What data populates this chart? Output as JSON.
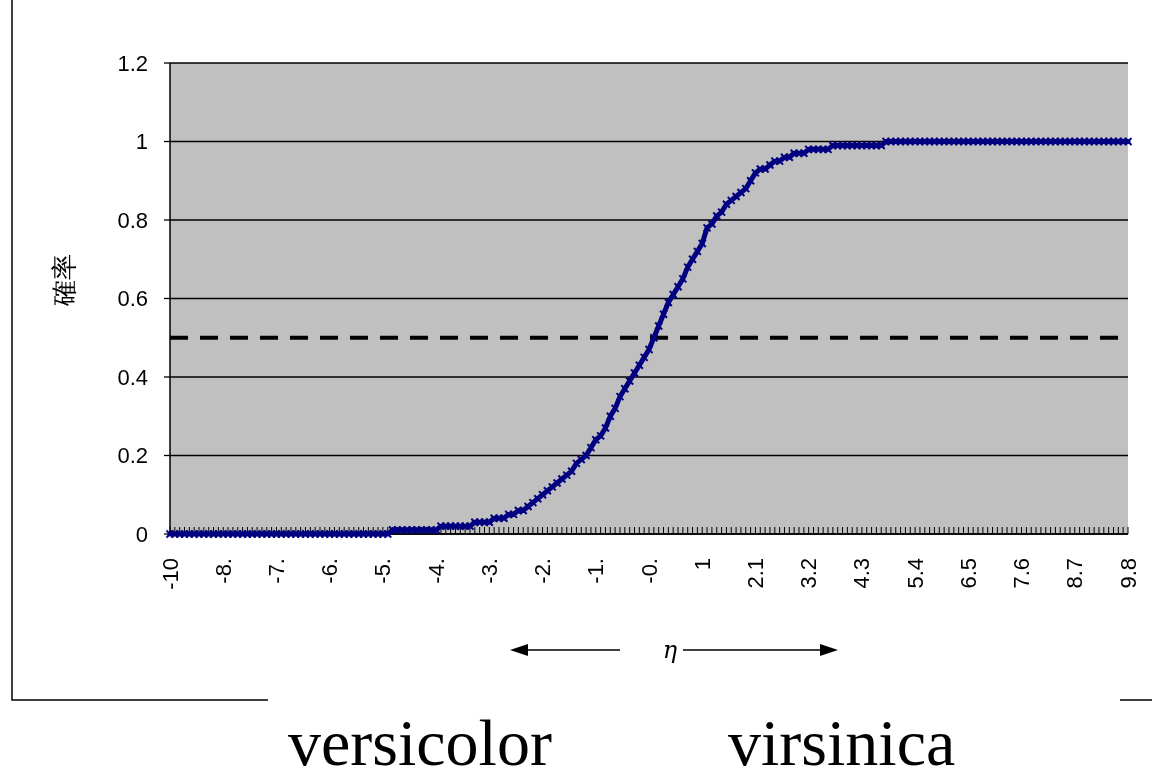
{
  "chart_data": {
    "type": "line",
    "ylabel": "確率",
    "xlabel": "η",
    "annotations": [
      "versicolor",
      "virsinica"
    ],
    "categories": [
      "-10",
      null,
      null,
      null,
      null,
      null,
      null,
      null,
      null,
      null,
      null,
      "-8.",
      null,
      null,
      null,
      null,
      null,
      null,
      null,
      null,
      null,
      null,
      "-7.",
      null,
      null,
      null,
      null,
      null,
      null,
      null,
      null,
      null,
      null,
      "-6.",
      null,
      null,
      null,
      null,
      null,
      null,
      null,
      null,
      null,
      null,
      "-5.",
      null,
      null,
      null,
      null,
      null,
      null,
      null,
      null,
      null,
      null,
      "-4.",
      null,
      null,
      null,
      null,
      null,
      null,
      null,
      null,
      null,
      null,
      "-3.",
      null,
      null,
      null,
      null,
      null,
      null,
      null,
      null,
      null,
      null,
      "-2.",
      null,
      null,
      null,
      null,
      null,
      null,
      null,
      null,
      null,
      null,
      "-1.",
      null,
      null,
      null,
      null,
      null,
      null,
      null,
      null,
      null,
      null,
      "-0.",
      null,
      null,
      null,
      null,
      null,
      null,
      null,
      null,
      null,
      null,
      "1",
      null,
      null,
      null,
      null,
      null,
      null,
      null,
      null,
      null,
      null,
      "2.1",
      null,
      null,
      null,
      null,
      null,
      null,
      null,
      null,
      null,
      null,
      "3.2",
      null,
      null,
      null,
      null,
      null,
      null,
      null,
      null,
      null,
      null,
      "4.3",
      null,
      null,
      null,
      null,
      null,
      null,
      null,
      null,
      null,
      null,
      "5.4",
      null,
      null,
      null,
      null,
      null,
      null,
      null,
      null,
      null,
      null,
      "6.5",
      null,
      null,
      null,
      null,
      null,
      null,
      null,
      null,
      null,
      null,
      "7.6",
      null,
      null,
      null,
      null,
      null,
      null,
      null,
      null,
      null,
      null,
      "8.7",
      null,
      null,
      null,
      null,
      null,
      null,
      null,
      null,
      null,
      null,
      "9.8"
    ],
    "series": [
      {
        "color": "#000080",
        "values": [
          0,
          0,
          0,
          0,
          0,
          0,
          0,
          0,
          0,
          0,
          0,
          0,
          0,
          0,
          0,
          0,
          0,
          0,
          0,
          0,
          0,
          0,
          0,
          0,
          0,
          0,
          0,
          0,
          0,
          0,
          0,
          0,
          0,
          0,
          0,
          0,
          0,
          0,
          0,
          0,
          0,
          0,
          0,
          0,
          0,
          0,
          0.01,
          0.01,
          0.01,
          0.01,
          0.01,
          0.01,
          0.01,
          0.01,
          0.01,
          0.01,
          0.02,
          0.02,
          0.02,
          0.02,
          0.02,
          0.02,
          0.02,
          0.03,
          0.03,
          0.03,
          0.03,
          0.04,
          0.04,
          0.04,
          0.05,
          0.05,
          0.06,
          0.06,
          0.07,
          0.08,
          0.09,
          0.1,
          0.11,
          0.12,
          0.13,
          0.14,
          0.15,
          0.16,
          0.18,
          0.19,
          0.2,
          0.22,
          0.24,
          0.25,
          0.27,
          0.3,
          0.32,
          0.35,
          0.37,
          0.39,
          0.41,
          0.43,
          0.45,
          0.47,
          0.5,
          0.53,
          0.56,
          0.59,
          0.61,
          0.63,
          0.65,
          0.68,
          0.7,
          0.72,
          0.74,
          0.78,
          0.79,
          0.81,
          0.82,
          0.84,
          0.85,
          0.86,
          0.87,
          0.88,
          0.9,
          0.92,
          0.93,
          0.93,
          0.94,
          0.95,
          0.95,
          0.96,
          0.96,
          0.97,
          0.97,
          0.97,
          0.98,
          0.98,
          0.98,
          0.98,
          0.98,
          0.99,
          0.99,
          0.99,
          0.99,
          0.99,
          0.99,
          0.99,
          0.99,
          0.99,
          0.99,
          0.99,
          1,
          1,
          1,
          1,
          1,
          1,
          1,
          1,
          1,
          1,
          1,
          1,
          1,
          1,
          1,
          1,
          1,
          1,
          1,
          1,
          1,
          1,
          1,
          1,
          1,
          1,
          1,
          1,
          1,
          1,
          1,
          1,
          1,
          1,
          1,
          1,
          1,
          1,
          1,
          1,
          1,
          1,
          1,
          1,
          1,
          1,
          1,
          1,
          1,
          1,
          1
        ]
      }
    ],
    "ylim": [
      0,
      1.2
    ],
    "yticks": [
      0,
      0.2,
      0.4,
      0.6,
      0.8,
      1,
      1.2
    ],
    "grid": "y",
    "marker": "cross",
    "ref_lines": [
      {
        "axis": "y",
        "value": 0.5,
        "color": "#000000",
        "line_style": "dashed"
      }
    ]
  }
}
